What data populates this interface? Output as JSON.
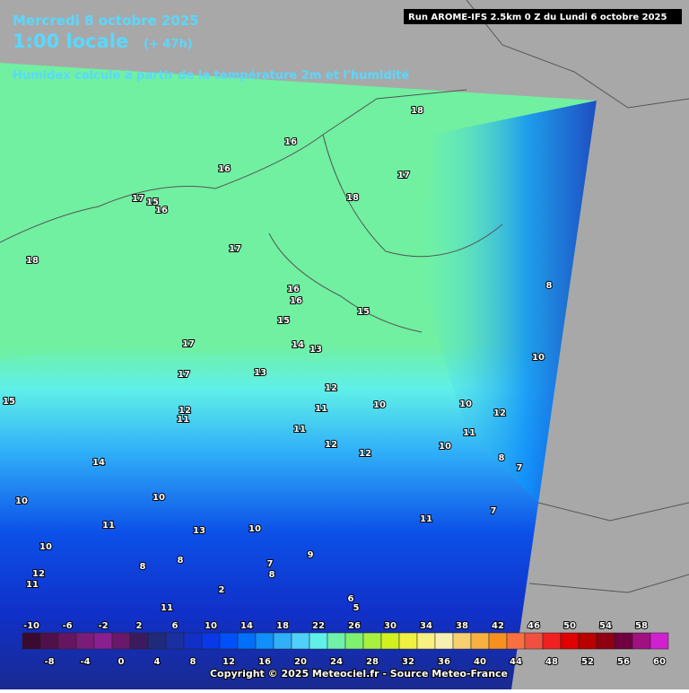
{
  "header": {
    "date": "Mercredi 8 octobre 2025",
    "time": "1:00 locale",
    "lead": "(+ 47h)",
    "run": "Run AROME-IFS 2.5km 0 Z du Lundi 6 octobre 2025",
    "title": "Humidex calculé à partir de la température 2m et l'humidité"
  },
  "contour_labels": [
    18,
    16,
    16,
    17,
    18,
    17,
    15,
    16,
    18,
    17,
    8,
    16,
    16,
    15,
    15,
    17,
    14,
    13,
    10,
    17,
    13,
    12,
    15,
    10,
    10,
    11,
    12,
    11,
    12,
    11,
    11,
    12,
    10,
    12,
    8,
    14,
    7,
    10,
    10,
    7,
    11,
    11,
    10,
    13,
    10,
    9,
    8,
    8,
    7,
    8,
    12,
    11,
    2,
    11,
    6,
    5
  ],
  "scale": {
    "labels": [
      -10,
      -8,
      -6,
      -4,
      -2,
      0,
      2,
      4,
      6,
      8,
      10,
      12,
      14,
      16,
      18,
      20,
      22,
      24,
      26,
      28,
      30,
      32,
      34,
      36,
      38,
      40,
      42,
      44,
      46,
      48,
      50,
      52,
      54,
      56,
      58,
      60
    ],
    "colors": [
      "#3a0a30",
      "#50104a",
      "#661660",
      "#7a1c78",
      "#8a2090",
      "#6a186a",
      "#3c1a5e",
      "#202a7a",
      "#1a30a0",
      "#1030c8",
      "#0838e8",
      "#0050f8",
      "#0070f8",
      "#1090f8",
      "#30b0f8",
      "#50d0f8",
      "#60f0e8",
      "#70f0a8",
      "#80f070",
      "#a8f040",
      "#d0f020",
      "#f0f040",
      "#f8f080",
      "#f8f0b0",
      "#f8d070",
      "#f8b040",
      "#f89020",
      "#f87040",
      "#f05040",
      "#f02020",
      "#e00000",
      "#b80000",
      "#900010",
      "#700040",
      "#a01080",
      "#d020d0"
    ]
  },
  "copyright": "Copyright © 2025 Meteociel.fr - Source Meteo-France"
}
